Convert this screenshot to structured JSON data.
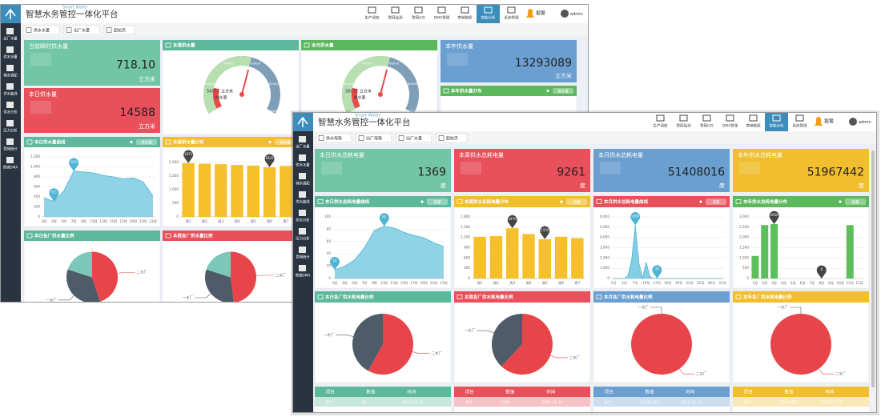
{
  "windows": [
    {
      "title": "智慧水务管控一体化平台",
      "subtitle": "Smart Water",
      "nav": [
        "生产调度",
        "管网监测",
        "管网GIS",
        "DMA管理",
        "营销数据",
        "智能分析",
        "系统管理"
      ],
      "nav_active": 5,
      "alarm": "报警",
      "user": "admin",
      "tabs": [
        "供水水量",
        "出厂水量",
        "起始页"
      ],
      "sidebar": [
        "出厂水量",
        "供水水量",
        "辅水调配",
        "供水曲线",
        "供水分析",
        "压力分析",
        "管网统计",
        "营销DMA"
      ],
      "stats": [
        {
          "title": "当前瞬时供水量",
          "value": "718.10",
          "unit": "立方米",
          "color": "#72c6a6"
        },
        {
          "title": "本日供水量",
          "value": "14588",
          "unit": "立方米",
          "color": "#e8505b"
        },
        {
          "title": "本年供水量",
          "value": "13293089",
          "unit": "立方米",
          "color": "#6a9fd0"
        }
      ],
      "gauges": [
        {
          "title": "本周供水量",
          "color": "#5eb89b",
          "value": 56071,
          "unit": "立方米",
          "label": "供水量",
          "max": 100000,
          "ticks": [
            0,
            20000,
            40000,
            60000,
            80000,
            100000
          ]
        },
        {
          "title": "本月供水量",
          "color": "#5cb85c",
          "value": 56071,
          "unit": "立方米",
          "label": "供水量",
          "max": 100000,
          "ticks": [
            0,
            20000,
            40000,
            60000,
            80000,
            100000
          ]
        }
      ],
      "panels": [
        {
          "title": "本年供水量分布",
          "color": "#5cb85c",
          "legend": "供水量"
        }
      ],
      "charts": [
        {
          "type": "area",
          "title": "本日供水量曲线",
          "color": "#5eb89b",
          "legend": "供水量",
          "mark_color": "#7ccbe0",
          "pin_color": "#4fb3d3",
          "categories": [
            "1时",
            "3时",
            "5时",
            "7时",
            "9时",
            "11时",
            "13时",
            "15时",
            "17时",
            "19时",
            "21时",
            "23时"
          ],
          "values": [
            380,
            311,
            520,
            915,
            900,
            880,
            830,
            800,
            760,
            780,
            700,
            420
          ],
          "pins": [
            1,
            3
          ],
          "ylim": [
            0,
            1200
          ],
          "yticks": [
            0,
            200,
            400,
            600,
            800,
            {
              "value": 1000,
              "label": "1,000"
            },
            {
              "value": 1200,
              "label": "1,200"
            }
          ]
        },
        {
          "type": "bar",
          "title": "本周供水量分布",
          "color": "#f0be2e",
          "legend": "供水量",
          "mark_color": "#f5c02a",
          "pin_color": "#444444",
          "categories": [
            "周1",
            "周2",
            "周3",
            "周4",
            "周5",
            "周6",
            "周7"
          ],
          "values": [
            1971,
            1950,
            1930,
            1905,
            1880,
            1822,
            1870
          ],
          "pins": [
            0,
            5
          ],
          "ylim": [
            0,
            2200
          ],
          "yticks": [
            0,
            500,
            {
              "value": 1000,
              "label": "1,000"
            },
            {
              "value": 1500,
              "label": "1,500"
            },
            {
              "value": 2000,
              "label": "2,000"
            }
          ]
        }
      ],
      "pies": [
        {
          "title": "本日各厂供水量比例",
          "color": "#5eb89b",
          "slices": [
            {
              "name": "二水厂",
              "value": 45,
              "color": "#e8454a"
            },
            {
              "name": "一水厂",
              "value": 35,
              "color": "#4e5c69"
            },
            {
              "name": null,
              "value": 20,
              "color": "#7cc8b8"
            }
          ]
        },
        {
          "title": "本周各厂供水量比例",
          "color": "#e8505b",
          "slices": [
            {
              "name": "二水厂",
              "value": 48,
              "color": "#e8454a"
            },
            {
              "name": "一水厂",
              "value": 32,
              "color": "#4e5c69"
            },
            {
              "name": null,
              "value": 20,
              "color": "#7cc8b8"
            }
          ]
        }
      ],
      "tables": []
    },
    {
      "title": "智慧水务管控一体化平台",
      "subtitle": "Smart Water",
      "nav": [
        "生产调度",
        "管网监测",
        "管网GIS",
        "DMA管理",
        "营销数据",
        "智能分析",
        "系统管理"
      ],
      "nav_active": 5,
      "alarm": "报警",
      "user": "admin",
      "tabs": [
        "供水电耗",
        "出厂电耗",
        "出厂水量",
        "起始页"
      ],
      "sidebar": [
        "出厂水量",
        "供水水量",
        "辅水调配",
        "供水曲线",
        "供水分析",
        "压力分析",
        "管网统计",
        "营销DMA"
      ],
      "stats": [
        {
          "title": "本日供水总耗电量",
          "value": "1369",
          "unit": "度",
          "color": "#72c6a6"
        },
        {
          "title": "本周供水总耗电量",
          "value": "9261",
          "unit": "度",
          "color": "#e8505b"
        },
        {
          "title": "本月供水总耗电量",
          "value": "51408016",
          "unit": "度",
          "color": "#6a9fd0"
        },
        {
          "title": "本年供水总耗电量",
          "value": "51967442",
          "unit": "度",
          "color": "#f0be2e"
        }
      ],
      "gauges": [],
      "panels": [],
      "charts": [
        {
          "type": "area",
          "title": "本日供水总耗电量曲线",
          "color": "#5eb89b",
          "legend": "电量",
          "mark_color": "#7ccbe0",
          "pin_color": "#4fb3d3",
          "categories": [
            "1时",
            "3时",
            "5时",
            "7时",
            "9时",
            "11时",
            "13时",
            "15时",
            "17时",
            "19时",
            "21时",
            "23时"
          ],
          "values": [
            14,
            20,
            30,
            50,
            78,
            85,
            82,
            75,
            70,
            66,
            58,
            52
          ],
          "pins": [
            0,
            5
          ],
          "ylim": [
            0,
            100
          ],
          "yticks": [
            0,
            20,
            40,
            60,
            80,
            100
          ]
        },
        {
          "type": "bar",
          "title": "本周供水总耗电量分布",
          "color": "#f0be2e",
          "legend": "电量",
          "mark_color": "#f5c02a",
          "pin_color": "#444444",
          "categories": [
            "周1",
            "周2",
            "周3",
            "周4",
            "周5",
            "周6",
            "周7"
          ],
          "values": [
            1220,
            1240,
            1470,
            1300,
            1150,
            1220,
            1180
          ],
          "pins": [
            2,
            4
          ],
          "ylim": [
            0,
            1800
          ],
          "yticks": [
            0,
            300,
            600,
            900,
            {
              "value": 1200,
              "label": "1,200"
            },
            {
              "value": 1500,
              "label": "1,500"
            },
            {
              "value": 1800,
              "label": "1,800"
            }
          ]
        },
        {
          "type": "area",
          "title": "本月供水总耗电量曲线",
          "color": "#e8505b",
          "legend": "电量",
          "mark_color": "#6fc5e0",
          "pin_color": "#4fb3d3",
          "categories": [
            "1号",
            null,
            null,
            "4号",
            null,
            null,
            "7号",
            null,
            null,
            "10号",
            null,
            null,
            "13号",
            null,
            null,
            "16号",
            null,
            null,
            "19号",
            null,
            null,
            "22号",
            null,
            null,
            "25号",
            null,
            null,
            "28号",
            null,
            null,
            "31号"
          ],
          "values": [
            0,
            0,
            0,
            0,
            300,
            1800,
            5200,
            1500,
            0,
            1600,
            200,
            0,
            20,
            0,
            0,
            0,
            0,
            0,
            0,
            0,
            0,
            0,
            0,
            0,
            0,
            0,
            0,
            0,
            0,
            0,
            0
          ],
          "pins": [
            6,
            12
          ],
          "ylim": [
            0,
            6000
          ],
          "yticks": [
            0,
            {
              "value": 1000,
              "label": "1,000"
            },
            {
              "value": 2000,
              "label": "2,000"
            },
            {
              "value": 3000,
              "label": "3,000"
            },
            {
              "value": 4000,
              "label": "4,000"
            },
            {
              "value": 5000,
              "label": "5,000"
            },
            {
              "value": 6000,
              "label": "6,000"
            }
          ]
        },
        {
          "type": "bar",
          "title": "本年供水总耗电量分布",
          "color": "#5cb85c",
          "legend": "电量",
          "mark_color": "#5cbf5c",
          "pin_color": "#444444",
          "categories": [
            "1月",
            "2月",
            "3月",
            "4月",
            "5月",
            "6月",
            "7月",
            "8月",
            "9月",
            "10月",
            "11月",
            "12月"
          ],
          "values": [
            1100,
            2600,
            2650,
            0,
            0,
            0,
            0,
            0,
            0,
            0,
            2600,
            0
          ],
          "pins": [
            2,
            7
          ],
          "ylim": [
            0,
            3000
          ],
          "yticks": [
            0,
            500,
            {
              "value": 1000,
              "label": "1,000"
            },
            {
              "value": 1500,
              "label": "1,500"
            },
            {
              "value": 2000,
              "label": "2,000"
            },
            {
              "value": 2500,
              "label": "2,500"
            },
            {
              "value": 3000,
              "label": "3,000"
            }
          ]
        }
      ],
      "pies": [
        {
          "title": "本日各厂供水耗电量比例",
          "color": "#5eb89b",
          "slices": [
            {
              "name": "二水厂",
              "value": 58,
              "color": "#e8454a"
            },
            {
              "name": "一水厂",
              "value": 42,
              "color": "#4e5c69"
            }
          ]
        },
        {
          "title": "本周各厂供水耗电量比例",
          "color": "#e8505b",
          "slices": [
            {
              "name": "二水厂",
              "value": 62,
              "color": "#e8454a"
            },
            {
              "name": "一水厂",
              "value": 38,
              "color": "#4e5c69"
            }
          ]
        },
        {
          "title": "本月各厂供水耗电量比例",
          "color": "#6a9fd0",
          "slices": [
            {
              "name": "二水厂",
              "value": 100,
              "color": "#e8454a"
            },
            {
              "name": "一水厂",
              "value": 0,
              "color": "#4e5c69"
            }
          ]
        },
        {
          "title": "本年各厂供水耗电量比例",
          "color": "#f0be2e",
          "slices": [
            {
              "name": "二水厂",
              "value": 100,
              "color": "#e8454a"
            },
            {
              "name": "一水厂",
              "value": 0,
              "color": "#4e5c69"
            }
          ]
        }
      ],
      "tables": [
        {
          "color": "#5eb89b",
          "headers": [
            "项目",
            "数值",
            "时间"
          ],
          "row": [
            "总计",
            "83",
            "2016-11-14"
          ]
        },
        {
          "color": "#e8505b",
          "headers": [
            "项目",
            "数值",
            "时间"
          ],
          "row": [
            "总计",
            "1924",
            "2016-11-14"
          ]
        },
        {
          "color": "#6a9fd0",
          "headers": [
            "项目",
            "数值",
            "时间"
          ],
          "row": [
            "总计",
            "51226143",
            "2016-11-14"
          ]
        },
        {
          "color": "#f0be2e",
          "headers": [
            "项目",
            "数值",
            "时间"
          ],
          "row": [
            "总计",
            "51656893",
            "2016-11-14"
          ]
        }
      ]
    }
  ]
}
